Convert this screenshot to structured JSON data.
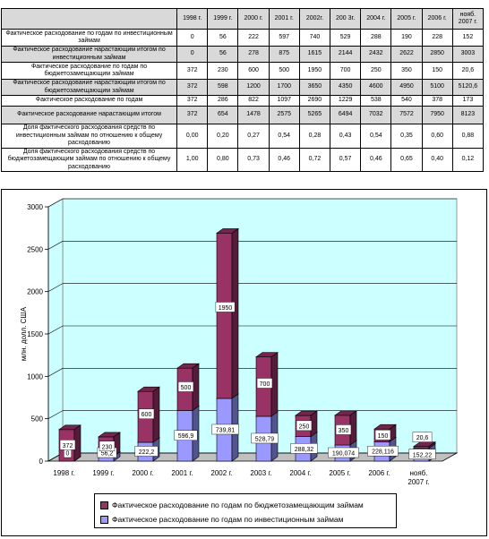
{
  "table": {
    "headers": [
      "",
      "1998 г.",
      "1999 г.",
      "2000 г.",
      "2001 г.",
      "2002г.",
      "200 3г.",
      "2004 г.",
      "2005 г.",
      "2006 г.",
      "нояб. 2007 г."
    ],
    "rows": [
      {
        "label": "Фактическое расходование по годам по инвестиционным займам",
        "values": [
          "0",
          "56",
          "222",
          "597",
          "740",
          "529",
          "288",
          "190",
          "228",
          "152"
        ]
      },
      {
        "label": "Фактическое расходование нарастающим итогом по инвестиционным займам",
        "values": [
          "0",
          "56",
          "278",
          "875",
          "1615",
          "2144",
          "2432",
          "2622",
          "2850",
          "3003"
        ]
      },
      {
        "label": "Фактическое расходование по годам по бюджетозамещающим займам",
        "values": [
          "372",
          "230",
          "600",
          "500",
          "1950",
          "700",
          "250",
          "350",
          "150",
          "20,6"
        ]
      },
      {
        "label": "Фактическое расходование нарастающим итогом по бюджетозамещающим займам",
        "values": [
          "372",
          "598",
          "1200",
          "1700",
          "3650",
          "4350",
          "4600",
          "4950",
          "5100",
          "5120,6"
        ]
      },
      {
        "label": "Фактическое расходование по годам",
        "values": [
          "372",
          "286",
          "822",
          "1097",
          "2690",
          "1229",
          "538",
          "540",
          "378",
          "173"
        ]
      },
      {
        "label": "Фактическое расходование нарастающим итогом",
        "values": [
          "372",
          "654",
          "1478",
          "2575",
          "5265",
          "6494",
          "7032",
          "7572",
          "7950",
          "8123"
        ]
      },
      {
        "label": "Доля фактического расходования средств по инвестиционным займам по отношению к общему расходованию",
        "values": [
          "0,00",
          "0,20",
          "0,27",
          "0,54",
          "0,28",
          "0,43",
          "0,54",
          "0,35",
          "0,60",
          "0,88"
        ]
      },
      {
        "label": "Доля фактического расходования средств по бюджетозамещающим займам по отношению к общему расходованию",
        "values": [
          "1,00",
          "0,80",
          "0,73",
          "0,46",
          "0,72",
          "0,57",
          "0,46",
          "0,65",
          "0,40",
          "0,12"
        ]
      }
    ]
  },
  "chart_data": {
    "type": "bar",
    "stacked": true,
    "categories": [
      "1998 г.",
      "1999 г.",
      "2000 г.",
      "2001 г.",
      "2002 г.",
      "2003 г.",
      "2004 г.",
      "2005 г.",
      "2006 г.",
      "нояб. 2007 г."
    ],
    "series": [
      {
        "name": "Фактическое расходование по годам по инвестиционным займам",
        "values": [
          0,
          56.2,
          222.2,
          596.9,
          739.81,
          528.79,
          288.32,
          190.074,
          228.116,
          152.22
        ],
        "labels": [
          "0",
          "56,2",
          "222,2",
          "596,9",
          "739,81",
          "528,79",
          "288,32",
          "190,074",
          "228,116",
          "152,22"
        ],
        "color": "#9999ff"
      },
      {
        "name": "Фактическое расходование по годам по бюджетозамещающим займам",
        "values": [
          372,
          230,
          600,
          500,
          1950,
          700,
          250,
          350,
          150,
          20.6
        ],
        "labels": [
          "372",
          "230",
          "600",
          "500",
          "1950",
          "700",
          "250",
          "350",
          "150",
          "20,6"
        ],
        "color": "#993366"
      }
    ],
    "ylabel": "млн. долл. США",
    "xlabel": "",
    "ylim": [
      0,
      3000
    ],
    "yticks": [
      0,
      500,
      1000,
      1500,
      2000,
      2500,
      3000
    ],
    "grid": true,
    "legend_position": "bottom",
    "wall_color": "#ccffff",
    "floor_color": "#c0c0c0"
  }
}
